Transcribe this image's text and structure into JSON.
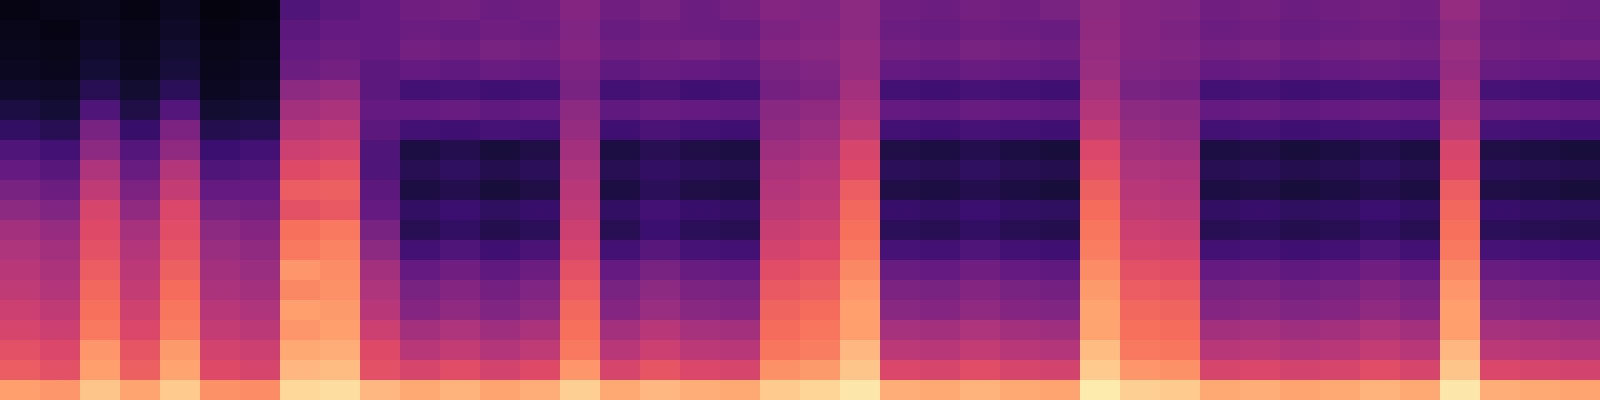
{
  "chart_data": {
    "type": "heatmap",
    "color": "magma",
    "tick_labels": false,
    "zlim": [
      0,
      100
    ],
    "cells": [
      [
        3,
        4,
        5,
        3,
        6,
        2,
        3,
        25,
        28,
        30,
        33,
        34,
        32,
        33,
        38,
        33,
        35,
        32,
        34,
        38,
        37,
        40,
        33,
        32,
        34,
        33,
        35,
        40,
        38,
        37,
        33,
        34,
        32,
        33,
        34,
        33,
        42,
        34,
        33,
        32
      ],
      [
        4,
        3,
        6,
        4,
        7,
        3,
        4,
        28,
        30,
        30,
        32,
        31,
        33,
        32,
        37,
        31,
        33,
        32,
        31,
        36,
        38,
        40,
        32,
        31,
        33,
        32,
        31,
        41,
        38,
        36,
        32,
        33,
        31,
        32,
        33,
        32,
        40,
        33,
        32,
        31
      ],
      [
        5,
        4,
        8,
        5,
        9,
        4,
        5,
        30,
        32,
        30,
        34,
        33,
        35,
        34,
        38,
        33,
        34,
        35,
        33,
        38,
        39,
        42,
        34,
        33,
        35,
        34,
        33,
        42,
        38,
        37,
        34,
        35,
        33,
        34,
        35,
        34,
        43,
        34,
        33,
        34
      ],
      [
        6,
        5,
        10,
        6,
        11,
        5,
        6,
        32,
        34,
        28,
        30,
        29,
        31,
        30,
        36,
        29,
        31,
        30,
        29,
        35,
        37,
        42,
        30,
        29,
        31,
        30,
        29,
        43,
        37,
        36,
        30,
        31,
        29,
        30,
        31,
        30,
        42,
        31,
        30,
        29
      ],
      [
        8,
        7,
        15,
        9,
        16,
        6,
        7,
        40,
        42,
        28,
        22,
        23,
        21,
        22,
        35,
        22,
        24,
        21,
        22,
        34,
        36,
        45,
        22,
        21,
        23,
        22,
        21,
        46,
        35,
        34,
        22,
        23,
        21,
        22,
        23,
        22,
        45,
        23,
        22,
        21
      ],
      [
        12,
        10,
        25,
        13,
        26,
        9,
        10,
        45,
        47,
        30,
        30,
        31,
        29,
        30,
        40,
        29,
        31,
        30,
        29,
        39,
        41,
        48,
        30,
        29,
        31,
        30,
        29,
        49,
        40,
        39,
        30,
        31,
        29,
        30,
        31,
        30,
        48,
        31,
        30,
        29
      ],
      [
        18,
        15,
        35,
        19,
        36,
        14,
        15,
        50,
        52,
        28,
        22,
        21,
        23,
        22,
        42,
        21,
        24,
        22,
        21,
        41,
        43,
        52,
        22,
        21,
        23,
        22,
        21,
        53,
        42,
        41,
        22,
        23,
        21,
        22,
        23,
        22,
        52,
        23,
        22,
        21
      ],
      [
        25,
        22,
        40,
        26,
        41,
        20,
        22,
        55,
        57,
        25,
        12,
        14,
        11,
        13,
        45,
        12,
        15,
        13,
        12,
        44,
        46,
        58,
        13,
        12,
        14,
        12,
        11,
        59,
        45,
        44,
        12,
        13,
        11,
        12,
        14,
        12,
        58,
        13,
        12,
        11
      ],
      [
        30,
        27,
        48,
        31,
        49,
        25,
        26,
        60,
        62,
        25,
        15,
        17,
        14,
        16,
        48,
        15,
        18,
        16,
        15,
        47,
        49,
        60,
        16,
        15,
        17,
        15,
        14,
        62,
        48,
        47,
        15,
        16,
        14,
        15,
        17,
        15,
        60,
        16,
        15,
        14
      ],
      [
        35,
        32,
        52,
        36,
        53,
        30,
        30,
        65,
        66,
        28,
        12,
        14,
        11,
        13,
        50,
        12,
        16,
        13,
        12,
        49,
        51,
        65,
        13,
        12,
        14,
        12,
        11,
        66,
        50,
        49,
        12,
        13,
        11,
        12,
        14,
        12,
        65,
        13,
        12,
        11
      ],
      [
        40,
        37,
        58,
        41,
        59,
        35,
        34,
        62,
        64,
        30,
        18,
        20,
        17,
        19,
        52,
        18,
        22,
        19,
        18,
        51,
        53,
        68,
        19,
        18,
        20,
        18,
        17,
        69,
        52,
        51,
        18,
        19,
        17,
        18,
        20,
        18,
        68,
        19,
        18,
        17
      ],
      [
        45,
        42,
        60,
        46,
        61,
        40,
        38,
        70,
        72,
        35,
        15,
        18,
        14,
        16,
        55,
        15,
        20,
        16,
        15,
        54,
        56,
        70,
        16,
        15,
        18,
        15,
        14,
        71,
        55,
        54,
        15,
        16,
        14,
        15,
        18,
        15,
        70,
        16,
        15,
        14
      ],
      [
        48,
        45,
        62,
        49,
        63,
        43,
        41,
        72,
        74,
        40,
        22,
        25,
        21,
        24,
        58,
        22,
        27,
        23,
        22,
        57,
        59,
        72,
        23,
        22,
        25,
        22,
        21,
        73,
        58,
        57,
        22,
        23,
        21,
        22,
        25,
        22,
        72,
        23,
        22,
        21
      ],
      [
        50,
        47,
        65,
        51,
        66,
        45,
        43,
        78,
        76,
        45,
        30,
        33,
        29,
        32,
        62,
        30,
        35,
        31,
        30,
        61,
        63,
        75,
        31,
        30,
        33,
        30,
        29,
        76,
        62,
        61,
        30,
        31,
        29,
        30,
        33,
        30,
        75,
        31,
        30,
        29
      ],
      [
        52,
        49,
        68,
        53,
        69,
        47,
        45,
        75,
        77,
        48,
        35,
        38,
        34,
        37,
        65,
        35,
        40,
        36,
        35,
        64,
        66,
        78,
        36,
        35,
        38,
        35,
        34,
        79,
        65,
        64,
        35,
        36,
        34,
        35,
        38,
        35,
        78,
        36,
        35,
        34
      ],
      [
        55,
        52,
        70,
        56,
        71,
        50,
        48,
        80,
        79,
        50,
        38,
        41,
        37,
        40,
        68,
        38,
        43,
        39,
        38,
        67,
        69,
        80,
        39,
        38,
        41,
        38,
        37,
        81,
        68,
        67,
        38,
        39,
        37,
        38,
        41,
        38,
        80,
        39,
        38,
        37
      ],
      [
        58,
        55,
        72,
        59,
        73,
        53,
        51,
        78,
        80,
        55,
        45,
        48,
        44,
        47,
        70,
        45,
        50,
        46,
        45,
        69,
        71,
        80,
        46,
        45,
        48,
        45,
        44,
        81,
        70,
        69,
        45,
        46,
        44,
        45,
        48,
        45,
        80,
        46,
        45,
        44
      ],
      [
        62,
        59,
        78,
        63,
        79,
        57,
        55,
        82,
        83,
        60,
        50,
        53,
        49,
        52,
        72,
        50,
        55,
        51,
        50,
        71,
        73,
        85,
        51,
        50,
        53,
        50,
        49,
        86,
        72,
        71,
        50,
        51,
        49,
        50,
        53,
        50,
        85,
        51,
        50,
        49
      ],
      [
        65,
        62,
        80,
        66,
        81,
        60,
        58,
        85,
        86,
        62,
        58,
        61,
        57,
        60,
        78,
        58,
        63,
        59,
        58,
        77,
        79,
        88,
        59,
        58,
        61,
        58,
        57,
        89,
        78,
        77,
        58,
        59,
        57,
        58,
        61,
        58,
        88,
        59,
        58,
        57
      ],
      [
        80,
        78,
        88,
        81,
        89,
        77,
        76,
        92,
        93,
        85,
        82,
        84,
        81,
        83,
        90,
        82,
        85,
        83,
        82,
        89,
        91,
        95,
        83,
        82,
        84,
        82,
        81,
        96,
        90,
        89,
        82,
        83,
        81,
        82,
        84,
        82,
        95,
        83,
        82,
        81
      ]
    ]
  }
}
